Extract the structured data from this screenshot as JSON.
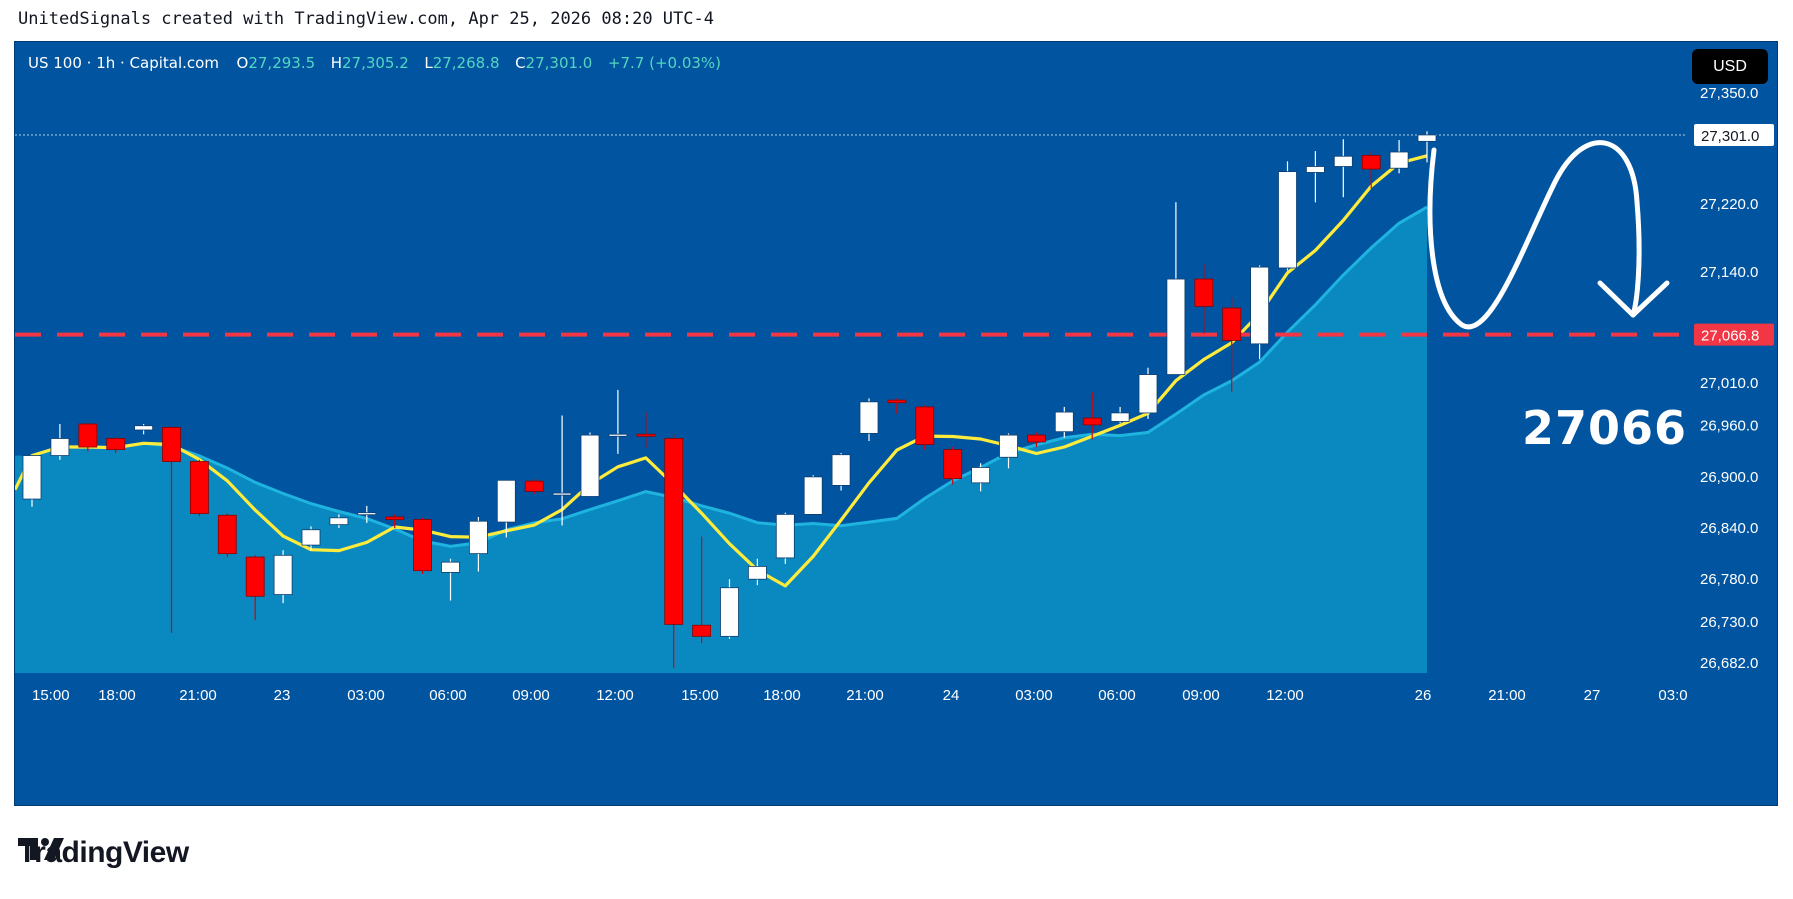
{
  "header": {
    "attribution": "UnitedSignals created with TradingView.com, Apr 25, 2026 08:20 UTC-4"
  },
  "legend": {
    "symbol": "US 100 · 1h · Capital.com",
    "o_label": "O",
    "o_value": "27,293.5",
    "h_label": "H",
    "h_value": "27,305.2",
    "l_label": "L",
    "l_value": "27,268.8",
    "c_label": "C",
    "c_value": "27,301.0",
    "change": "+7.7 (+0.03%)"
  },
  "currency": "USD",
  "price_labels": {
    "last": "27,301.0",
    "level": "27,066.8"
  },
  "annotation_text": "27066",
  "brand": "TradingView",
  "colors": {
    "background": "#0155a0",
    "up": "#ffffff",
    "down": "#ff0000",
    "ma_fast": "#ffeb3b",
    "ma_slow_fill": "#0a93c4",
    "level_line": "#f23645"
  },
  "chart_data": {
    "type": "candlestick",
    "symbol": "US 100",
    "timeframe": "1h",
    "yticks": [
      "27,350.0",
      "27,301.0",
      "27,220.0",
      "27,140.0",
      "27,066.8",
      "27,010.0",
      "26,960.0",
      "26,900.0",
      "26,840.0",
      "26,780.0",
      "26,730.0",
      "26,682.0"
    ],
    "ytick_values": [
      27350,
      27220,
      27140,
      27010,
      26960,
      26900,
      26840,
      26780,
      26730,
      26682
    ],
    "xticks": [
      "15:00",
      "18:00",
      "21:00",
      "23",
      "03:00",
      "06:00",
      "09:00",
      "12:00",
      "15:00",
      "18:00",
      "21:00",
      "24",
      "03:00",
      "06:00",
      "09:00",
      "12:00",
      "26",
      "21:00",
      "27",
      "03:0"
    ],
    "ylim": [
      26670,
      27410
    ],
    "horizontal_level": 27066.8,
    "last_price": 27301.0,
    "candles": [
      [
        26874,
        26925,
        26880,
        26865
      ],
      [
        26925,
        26945,
        26962,
        26920
      ],
      [
        26962,
        26935,
        26964,
        26930
      ],
      [
        26945,
        26932,
        26947,
        26928
      ],
      [
        26955,
        26960,
        26962,
        26950
      ],
      [
        26958,
        26918,
        26960,
        26717
      ],
      [
        26918,
        26857,
        26920,
        26854
      ],
      [
        26855,
        26810,
        26857,
        26806
      ],
      [
        26806,
        26760,
        26808,
        26732
      ],
      [
        26762,
        26808,
        26814,
        26752
      ],
      [
        26820,
        26838,
        26842,
        26814
      ],
      [
        26844,
        26852,
        26856,
        26840
      ],
      [
        26856,
        26858,
        26866,
        26846
      ],
      [
        26853,
        26850,
        26856,
        26840
      ],
      [
        26850,
        26790,
        26852,
        26786
      ],
      [
        26788,
        26800,
        26804,
        26755
      ],
      [
        26810,
        26848,
        26853,
        26789
      ],
      [
        26847,
        26896,
        26896,
        26829
      ],
      [
        26895,
        26883,
        26897,
        26880
      ],
      [
        26879,
        26881,
        26972,
        26843
      ],
      [
        26877,
        26949,
        26952,
        26880
      ],
      [
        26950,
        26950,
        27002,
        26927
      ],
      [
        26950,
        26948,
        26976,
        26934
      ],
      [
        26945,
        26727,
        26950,
        26676
      ],
      [
        26726,
        26713,
        26830,
        26705
      ],
      [
        26713,
        26770,
        26780,
        26710
      ],
      [
        26780,
        26795,
        26804,
        26773
      ],
      [
        26805,
        26856,
        26858,
        26798
      ],
      [
        26856,
        26900,
        26902,
        26858
      ],
      [
        26890,
        26926,
        26928,
        26884
      ],
      [
        26951,
        26988,
        26992,
        26942
      ],
      [
        26990,
        26987,
        26992,
        26974
      ],
      [
        26982,
        26938,
        26984,
        26932
      ],
      [
        26932,
        26898,
        26935,
        26891
      ],
      [
        26893,
        26911,
        26916,
        26883
      ],
      [
        26923,
        26949,
        26951,
        26910
      ],
      [
        26949,
        26941,
        26952,
        26935
      ],
      [
        26953,
        26976,
        26982,
        26946
      ],
      [
        26969,
        26961,
        26999,
        26944
      ],
      [
        26965,
        26975,
        26982,
        26963
      ],
      [
        26975,
        27020,
        27028,
        26968
      ],
      [
        27020,
        27132,
        27222,
        27065
      ],
      [
        27132,
        27100,
        27150,
        27068
      ],
      [
        27098,
        27060,
        27110,
        27000
      ],
      [
        27056,
        27146,
        27148,
        27038
      ],
      [
        27145,
        27258,
        27270,
        27142
      ],
      [
        27257,
        27264,
        27282,
        27222
      ],
      [
        27264,
        27276,
        27296,
        27228
      ],
      [
        27277,
        27261,
        27282,
        27238
      ],
      [
        27262,
        27281,
        27295,
        27256
      ],
      [
        27293.5,
        27301.0,
        27305.2,
        27268.8
      ]
    ]
  }
}
